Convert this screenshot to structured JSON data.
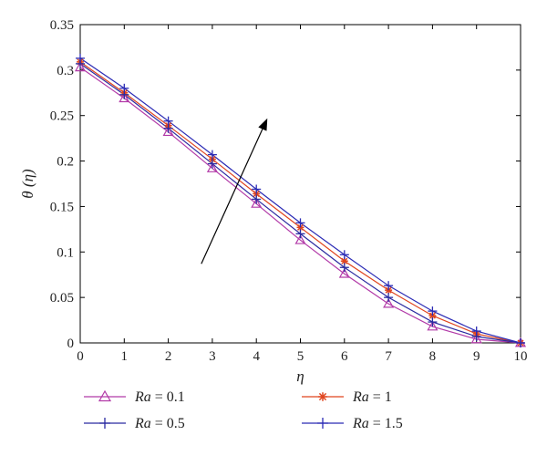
{
  "chart_data": {
    "type": "line",
    "title": "",
    "xlabel": "η",
    "ylabel": "θ (η)",
    "xlim": [
      0,
      10
    ],
    "ylim": [
      0,
      0.35
    ],
    "xticks": [
      0,
      1,
      2,
      3,
      4,
      5,
      6,
      7,
      8,
      9,
      10
    ],
    "yticks": [
      0,
      0.05,
      0.1,
      0.15,
      0.2,
      0.25,
      0.3,
      0.35
    ],
    "ytick_labels": [
      "0",
      "0.05",
      "0.1",
      "0.15",
      "0.2",
      "0.25",
      "0.3",
      "0.35"
    ],
    "grid": false,
    "legend_position": "bottom",
    "legend_prefix": "Ra",
    "x": [
      0,
      1,
      2,
      3,
      4,
      5,
      6,
      7,
      8,
      9,
      10
    ],
    "series": [
      {
        "name": "Ra = 0.1",
        "label_value": "0.1",
        "marker": "triangle",
        "color": "#b23aa8",
        "values": [
          0.303,
          0.269,
          0.232,
          0.192,
          0.153,
          0.113,
          0.076,
          0.043,
          0.018,
          0.004,
          0.0
        ]
      },
      {
        "name": "Ra = 1",
        "label_value": "1",
        "marker": "star",
        "color": "#e0451f",
        "values": [
          0.309,
          0.275,
          0.239,
          0.202,
          0.164,
          0.127,
          0.09,
          0.058,
          0.03,
          0.01,
          0.0
        ]
      },
      {
        "name": "Ra = 0.5",
        "label_value": "0.5",
        "marker": "plus",
        "color": "#2a2aa0",
        "values": [
          0.307,
          0.273,
          0.236,
          0.197,
          0.158,
          0.12,
          0.083,
          0.05,
          0.023,
          0.007,
          0.0
        ]
      },
      {
        "name": "Ra = 1.5",
        "label_value": "1.5",
        "marker": "plus",
        "color": "#2b2bb5",
        "values": [
          0.313,
          0.28,
          0.244,
          0.207,
          0.169,
          0.132,
          0.097,
          0.063,
          0.035,
          0.013,
          0.0
        ]
      }
    ],
    "annotation": {
      "type": "arrow",
      "from": [
        2.75,
        0.087
      ],
      "to": [
        4.25,
        0.247
      ],
      "meaning": "increasing Ra"
    }
  }
}
